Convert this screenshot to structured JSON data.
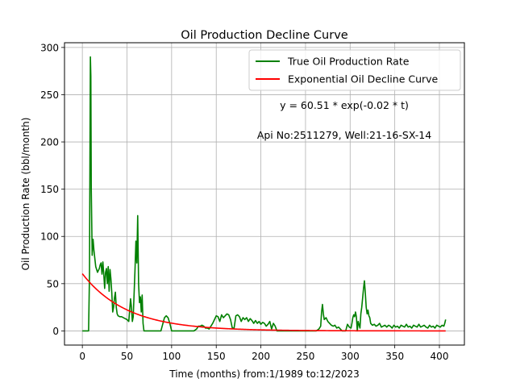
{
  "chart_data": {
    "type": "line",
    "title": "Oil Production Decline Curve",
    "xlabel": "Time (months) from:1/1989 to:12/2023",
    "ylabel": "Oil Production Rate (bbl/month)",
    "xlim": [
      -20,
      428
    ],
    "ylim": [
      -15,
      305
    ],
    "xticks": [
      0,
      50,
      100,
      150,
      200,
      250,
      300,
      350,
      400
    ],
    "yticks": [
      0,
      50,
      100,
      150,
      200,
      250,
      300
    ],
    "grid": true,
    "legend_position": "top-right",
    "annotations": [
      "y = 60.51 * exp(-0.02 * t)",
      "Api No:2511279, Well:21-16-SX-14"
    ],
    "series": [
      {
        "name": "True Oil Production Rate",
        "color": "#008000",
        "points": [
          [
            0,
            0
          ],
          [
            5,
            0
          ],
          [
            7,
            0
          ],
          [
            8,
            60
          ],
          [
            8.5,
            180
          ],
          [
            9,
            290
          ],
          [
            9.5,
            270
          ],
          [
            10,
            150
          ],
          [
            11,
            80
          ],
          [
            12,
            97
          ],
          [
            13,
            85
          ],
          [
            15,
            68
          ],
          [
            17,
            62
          ],
          [
            19,
            66
          ],
          [
            20,
            70
          ],
          [
            21,
            72
          ],
          [
            22,
            60
          ],
          [
            23,
            73
          ],
          [
            24,
            60
          ],
          [
            25,
            45
          ],
          [
            26,
            62
          ],
          [
            27,
            66
          ],
          [
            28,
            50
          ],
          [
            29,
            68
          ],
          [
            30,
            42
          ],
          [
            31,
            65
          ],
          [
            32,
            55
          ],
          [
            33,
            40
          ],
          [
            34,
            20
          ],
          [
            35,
            25
          ],
          [
            36,
            35
          ],
          [
            37,
            41
          ],
          [
            38,
            25
          ],
          [
            39,
            18
          ],
          [
            40,
            16
          ],
          [
            42,
            15
          ],
          [
            44,
            15
          ],
          [
            46,
            14
          ],
          [
            48,
            13
          ],
          [
            50,
            12
          ],
          [
            52,
            10
          ],
          [
            54,
            34
          ],
          [
            55,
            25
          ],
          [
            56,
            10
          ],
          [
            57,
            15
          ],
          [
            58,
            40
          ],
          [
            59,
            65
          ],
          [
            60,
            95
          ],
          [
            61,
            72
          ],
          [
            62,
            122
          ],
          [
            63,
            50
          ],
          [
            64,
            30
          ],
          [
            65,
            36
          ],
          [
            66,
            20
          ],
          [
            67,
            38
          ],
          [
            68,
            8
          ],
          [
            69,
            0
          ],
          [
            75,
            0
          ],
          [
            80,
            0
          ],
          [
            85,
            0
          ],
          [
            88,
            0
          ],
          [
            90,
            7
          ],
          [
            92,
            14
          ],
          [
            94,
            16
          ],
          [
            96,
            14
          ],
          [
            98,
            8
          ],
          [
            100,
            0
          ],
          [
            105,
            0
          ],
          [
            110,
            0
          ],
          [
            115,
            0
          ],
          [
            120,
            0
          ],
          [
            125,
            0
          ],
          [
            128,
            2
          ],
          [
            130,
            5
          ],
          [
            132,
            5
          ],
          [
            134,
            6
          ],
          [
            136,
            5
          ],
          [
            138,
            3
          ],
          [
            140,
            3
          ],
          [
            142,
            2
          ],
          [
            144,
            5
          ],
          [
            146,
            8
          ],
          [
            148,
            12
          ],
          [
            150,
            16
          ],
          [
            152,
            15
          ],
          [
            154,
            10
          ],
          [
            156,
            17
          ],
          [
            158,
            14
          ],
          [
            160,
            16
          ],
          [
            162,
            18
          ],
          [
            164,
            17
          ],
          [
            166,
            12
          ],
          [
            168,
            3
          ],
          [
            170,
            3
          ],
          [
            172,
            16
          ],
          [
            174,
            17
          ],
          [
            176,
            15
          ],
          [
            178,
            10
          ],
          [
            180,
            14
          ],
          [
            182,
            12
          ],
          [
            184,
            14
          ],
          [
            186,
            10
          ],
          [
            188,
            13
          ],
          [
            190,
            11
          ],
          [
            192,
            8
          ],
          [
            194,
            11
          ],
          [
            196,
            8
          ],
          [
            198,
            10
          ],
          [
            200,
            7
          ],
          [
            202,
            9
          ],
          [
            204,
            8
          ],
          [
            206,
            5
          ],
          [
            208,
            7
          ],
          [
            210,
            10
          ],
          [
            212,
            2
          ],
          [
            214,
            8
          ],
          [
            216,
            5
          ],
          [
            218,
            0
          ],
          [
            225,
            0
          ],
          [
            235,
            0
          ],
          [
            245,
            0
          ],
          [
            255,
            0
          ],
          [
            262,
            0
          ],
          [
            265,
            2
          ],
          [
            267,
            5
          ],
          [
            268,
            20
          ],
          [
            269,
            28
          ],
          [
            270,
            18
          ],
          [
            271,
            12
          ],
          [
            273,
            14
          ],
          [
            275,
            10
          ],
          [
            277,
            8
          ],
          [
            279,
            6
          ],
          [
            281,
            5
          ],
          [
            283,
            6
          ],
          [
            285,
            3
          ],
          [
            287,
            4
          ],
          [
            289,
            2
          ],
          [
            291,
            0
          ],
          [
            295,
            0
          ],
          [
            297,
            7
          ],
          [
            299,
            4
          ],
          [
            301,
            3
          ],
          [
            302,
            8
          ],
          [
            303,
            14
          ],
          [
            304,
            17
          ],
          [
            305,
            15
          ],
          [
            306,
            20
          ],
          [
            307,
            15
          ],
          [
            308,
            0
          ],
          [
            309,
            10
          ],
          [
            311,
            3
          ],
          [
            312,
            18
          ],
          [
            313,
            25
          ],
          [
            314,
            35
          ],
          [
            315,
            45
          ],
          [
            316,
            53
          ],
          [
            317,
            40
          ],
          [
            318,
            25
          ],
          [
            319,
            18
          ],
          [
            320,
            22
          ],
          [
            321,
            16
          ],
          [
            322,
            14
          ],
          [
            323,
            8
          ],
          [
            325,
            6
          ],
          [
            327,
            7
          ],
          [
            329,
            5
          ],
          [
            331,
            6
          ],
          [
            333,
            8
          ],
          [
            335,
            4
          ],
          [
            337,
            5
          ],
          [
            339,
            6
          ],
          [
            341,
            4
          ],
          [
            343,
            6
          ],
          [
            345,
            5
          ],
          [
            347,
            3
          ],
          [
            349,
            6
          ],
          [
            351,
            4
          ],
          [
            353,
            5
          ],
          [
            355,
            3
          ],
          [
            357,
            6
          ],
          [
            359,
            5
          ],
          [
            361,
            4
          ],
          [
            363,
            7
          ],
          [
            365,
            4
          ],
          [
            367,
            5
          ],
          [
            369,
            3
          ],
          [
            371,
            6
          ],
          [
            373,
            5
          ],
          [
            375,
            4
          ],
          [
            377,
            7
          ],
          [
            379,
            4
          ],
          [
            381,
            5
          ],
          [
            383,
            6
          ],
          [
            385,
            4
          ],
          [
            387,
            3
          ],
          [
            389,
            6
          ],
          [
            391,
            4
          ],
          [
            393,
            5
          ],
          [
            395,
            3
          ],
          [
            397,
            6
          ],
          [
            399,
            5
          ],
          [
            401,
            4
          ],
          [
            403,
            6
          ],
          [
            405,
            5
          ],
          [
            406,
            8
          ],
          [
            407,
            12
          ]
        ]
      },
      {
        "name": "Exponential Oil Decline Curve",
        "color": "#ff0000",
        "model": {
          "a": 60.51,
          "b": 0.02
        },
        "x_range": [
          0,
          407
        ]
      }
    ]
  }
}
